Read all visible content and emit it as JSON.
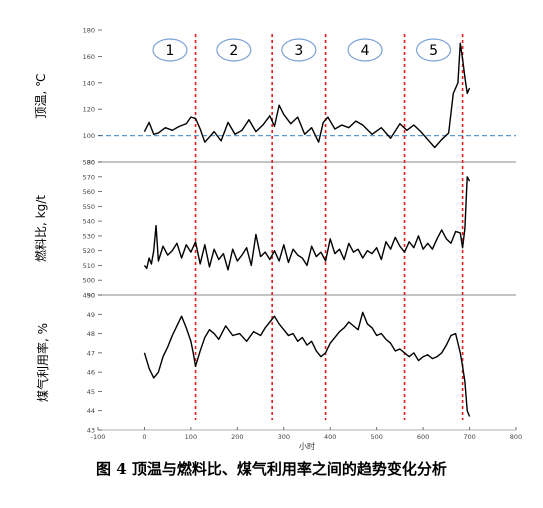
{
  "caption": "图 4   顶温与燃料比、煤气利用率之间的趋势变化分析",
  "x_axis": {
    "label": "小时",
    "ticks": [
      -100,
      0,
      100,
      200,
      300,
      400,
      500,
      600,
      700,
      800
    ]
  },
  "stages": [
    "1",
    "2",
    "3",
    "4",
    "5"
  ],
  "stage_boundaries": [
    110,
    275,
    390,
    560,
    685
  ],
  "chart_data": [
    {
      "type": "line",
      "ylabel": "顶温, ℃",
      "ylim": [
        80,
        180
      ],
      "yticks": [
        80,
        100,
        120,
        140,
        160,
        180
      ],
      "reference_line": 100,
      "series": [
        {
          "x": [
            0,
            10,
            20,
            30,
            45,
            60,
            75,
            90,
            100,
            110,
            120,
            130,
            140,
            150,
            165,
            180,
            195,
            210,
            225,
            240,
            255,
            270,
            280,
            290,
            300,
            315,
            330,
            345,
            360,
            375,
            385,
            395,
            410,
            425,
            440,
            455,
            470,
            490,
            510,
            530,
            550,
            565,
            580,
            595,
            610,
            625,
            640,
            655,
            665,
            675,
            680,
            685,
            690,
            695,
            700
          ],
          "values": [
            103,
            110,
            101,
            102,
            106,
            104,
            107,
            109,
            114,
            113,
            105,
            95,
            99,
            103,
            96,
            110,
            101,
            104,
            112,
            103,
            108,
            115,
            107,
            123,
            116,
            109,
            114,
            101,
            106,
            95,
            110,
            114,
            105,
            108,
            106,
            111,
            108,
            101,
            106,
            98,
            109,
            104,
            108,
            103,
            97,
            91,
            97,
            102,
            132,
            140,
            170,
            158,
            144,
            132,
            136
          ]
        }
      ]
    },
    {
      "type": "line",
      "ylabel": "燃料比, kg/t",
      "ylim": [
        490,
        580
      ],
      "yticks": [
        490,
        500,
        510,
        520,
        530,
        540,
        550,
        560,
        570,
        580
      ],
      "series": [
        {
          "x": [
            0,
            5,
            10,
            15,
            20,
            25,
            30,
            40,
            50,
            60,
            70,
            80,
            90,
            100,
            110,
            120,
            130,
            140,
            150,
            160,
            170,
            180,
            190,
            200,
            210,
            220,
            230,
            240,
            250,
            260,
            270,
            280,
            290,
            300,
            310,
            320,
            330,
            340,
            350,
            360,
            370,
            380,
            390,
            400,
            410,
            420,
            430,
            440,
            450,
            460,
            470,
            480,
            490,
            500,
            510,
            520,
            530,
            540,
            550,
            560,
            570,
            580,
            590,
            600,
            610,
            620,
            630,
            640,
            650,
            660,
            670,
            680,
            685,
            690,
            695,
            700
          ],
          "values": [
            510,
            508,
            515,
            511,
            520,
            537,
            513,
            523,
            517,
            520,
            525,
            515,
            524,
            519,
            526,
            511,
            524,
            509,
            521,
            514,
            518,
            507,
            521,
            513,
            517,
            522,
            510,
            531,
            516,
            519,
            514,
            520,
            513,
            524,
            512,
            521,
            517,
            515,
            510,
            523,
            516,
            519,
            513,
            528,
            518,
            521,
            514,
            525,
            519,
            521,
            515,
            520,
            518,
            522,
            514,
            526,
            521,
            529,
            523,
            519,
            526,
            522,
            530,
            521,
            525,
            521,
            528,
            534,
            528,
            525,
            533,
            532,
            522,
            535,
            570,
            567
          ]
        }
      ]
    },
    {
      "type": "line",
      "ylabel": "煤气利用率, %",
      "ylim": [
        43,
        50
      ],
      "yticks": [
        43,
        44,
        45,
        46,
        47,
        48,
        49,
        50
      ],
      "series": [
        {
          "x": [
            0,
            10,
            20,
            30,
            40,
            50,
            60,
            70,
            80,
            90,
            100,
            105,
            110,
            120,
            130,
            140,
            150,
            160,
            175,
            190,
            205,
            220,
            235,
            250,
            260,
            270,
            280,
            290,
            300,
            310,
            320,
            330,
            340,
            350,
            360,
            370,
            380,
            390,
            400,
            410,
            420,
            430,
            440,
            450,
            460,
            470,
            480,
            490,
            500,
            510,
            520,
            530,
            540,
            550,
            560,
            570,
            580,
            590,
            600,
            610,
            620,
            630,
            640,
            650,
            660,
            670,
            680,
            685,
            690,
            695,
            700
          ],
          "values": [
            47.0,
            46.2,
            45.7,
            46.0,
            46.8,
            47.3,
            47.9,
            48.4,
            48.9,
            48.3,
            47.6,
            47.0,
            46.3,
            47.1,
            47.8,
            48.2,
            48.0,
            47.7,
            48.4,
            47.9,
            48.0,
            47.6,
            48.1,
            47.9,
            48.3,
            48.6,
            48.9,
            48.5,
            48.2,
            47.9,
            48.0,
            47.6,
            47.8,
            47.4,
            47.6,
            47.1,
            46.8,
            47.0,
            47.5,
            47.8,
            48.1,
            48.3,
            48.6,
            48.4,
            48.2,
            49.1,
            48.5,
            48.3,
            47.9,
            48.0,
            47.7,
            47.5,
            47.1,
            47.2,
            47.0,
            46.8,
            47.0,
            46.6,
            46.8,
            46.9,
            46.7,
            46.8,
            47.0,
            47.4,
            47.9,
            48.0,
            47.0,
            46.3,
            45.5,
            44.0,
            43.7
          ]
        }
      ]
    }
  ]
}
